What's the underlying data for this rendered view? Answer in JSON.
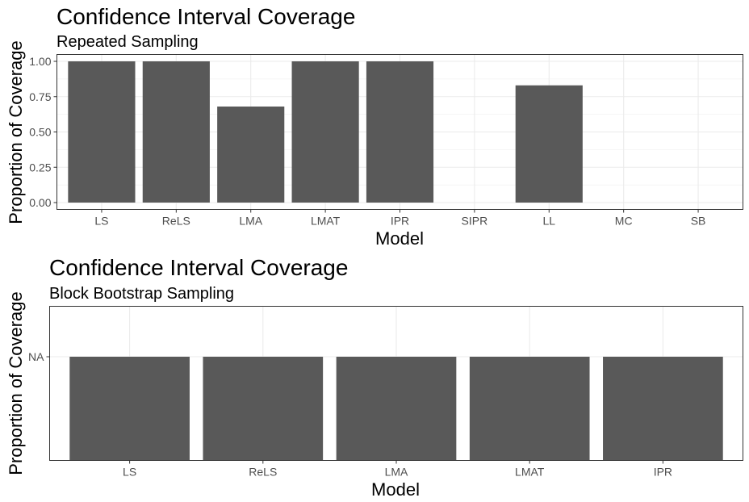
{
  "chart_data": [
    {
      "type": "bar",
      "title": "Confidence Interval Coverage",
      "subtitle": "Repeated Sampling",
      "xlabel": "Model",
      "ylabel": "Proportion of Coverage",
      "categories": [
        "LS",
        "ReLS",
        "LMA",
        "LMAT",
        "IPR",
        "SIPR",
        "LL",
        "MC",
        "SB"
      ],
      "values": [
        1.0,
        1.0,
        0.68,
        1.0,
        1.0,
        null,
        0.83,
        null,
        null
      ],
      "ylim": [
        0,
        1
      ],
      "yticks": [
        0,
        0.25,
        0.5,
        0.75,
        1.0
      ],
      "ytick_labels": [
        "0.00",
        "0.25",
        "0.50",
        "0.75",
        "1.00"
      ],
      "grid": true,
      "bar_color": "#595959"
    },
    {
      "type": "bar",
      "title": "Confidence Interval Coverage",
      "subtitle": "Block Bootstrap Sampling",
      "xlabel": "Model",
      "ylabel": "Proportion of Coverage",
      "categories": [
        "LS",
        "ReLS",
        "LMA",
        "LMAT",
        "IPR"
      ],
      "values": [
        "NA",
        "NA",
        "NA",
        "NA",
        "NA"
      ],
      "yticks": [
        "NA"
      ],
      "ytick_labels": [
        "NA"
      ],
      "grid": true,
      "bar_color": "#595959"
    }
  ]
}
